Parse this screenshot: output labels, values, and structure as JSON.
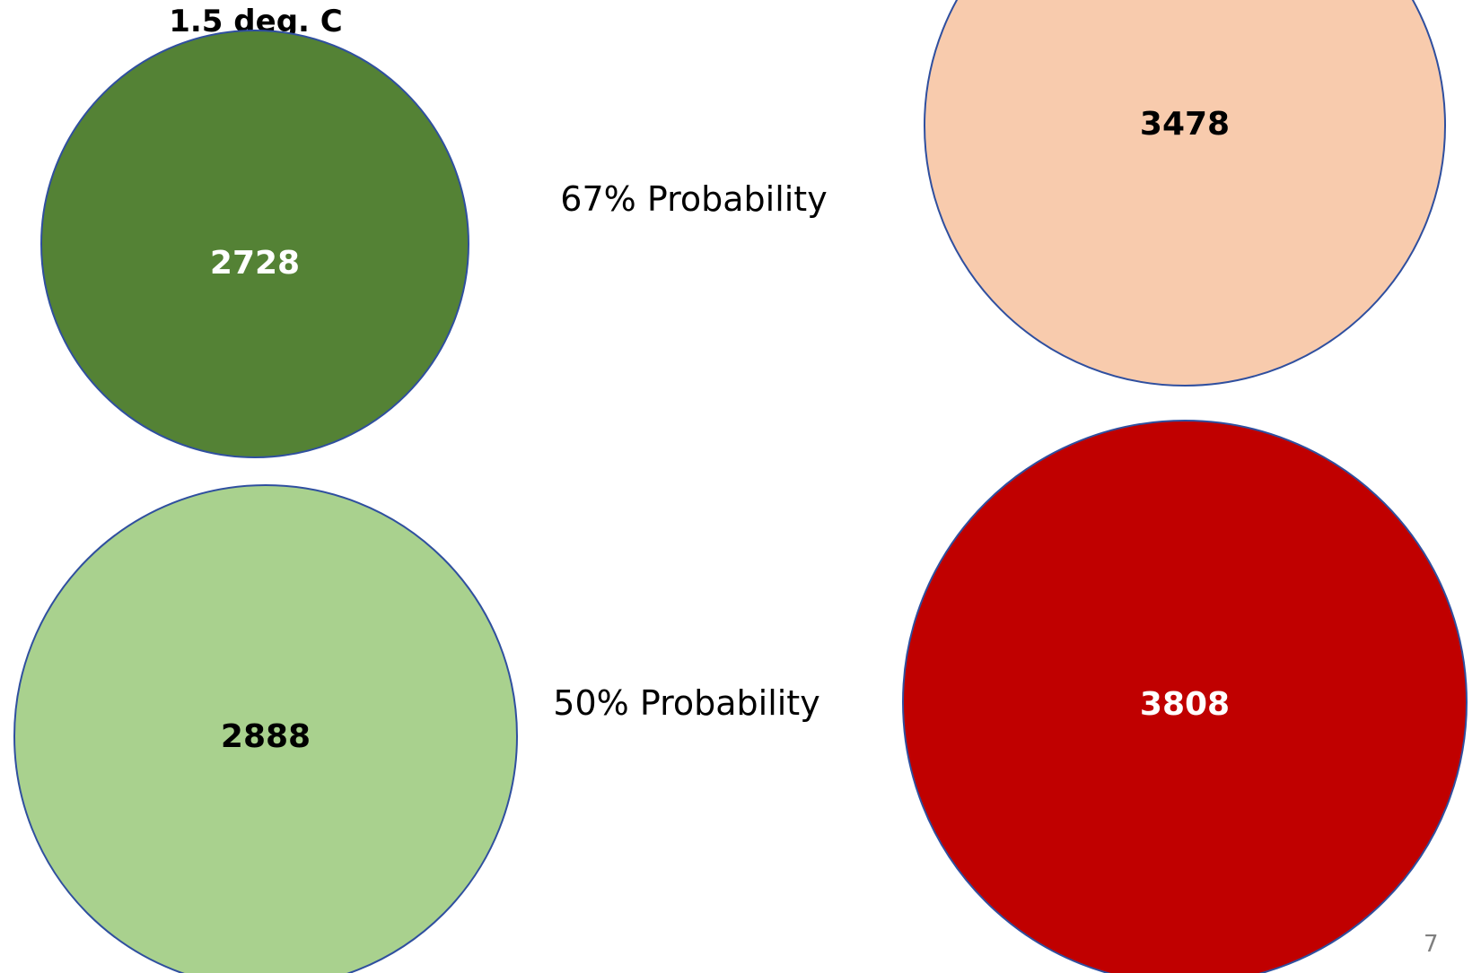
{
  "heading": "1.5 deg. C",
  "row_labels": [
    "67% Probability",
    "50% Probability"
  ],
  "page_number": "7",
  "colors": {
    "outline": "#2f4f9f",
    "dark_green": "#548235",
    "light_green": "#a9d18e",
    "peach": "#f8cbad",
    "dark_red": "#c00000",
    "label_dark": "#000000",
    "label_light": "#ffffff"
  },
  "chart_data": {
    "type": "bubble",
    "title": "1.5 deg. C",
    "rows": [
      "67% Probability",
      "50% Probability"
    ],
    "bubbles": [
      {
        "row": "67% Probability",
        "column": "1.5 deg. C",
        "value": 2728,
        "fill": "#548235",
        "label_color": "#ffffff"
      },
      {
        "row": "50% Probability",
        "column": "1.5 deg. C",
        "value": 2888,
        "fill": "#a9d18e",
        "label_color": "#000000"
      },
      {
        "row": "67% Probability",
        "column": "",
        "value": 3478,
        "fill": "#f8cbad",
        "label_color": "#000000"
      },
      {
        "row": "50% Probability",
        "column": "",
        "value": 3808,
        "fill": "#c00000",
        "label_color": "#ffffff"
      }
    ]
  }
}
